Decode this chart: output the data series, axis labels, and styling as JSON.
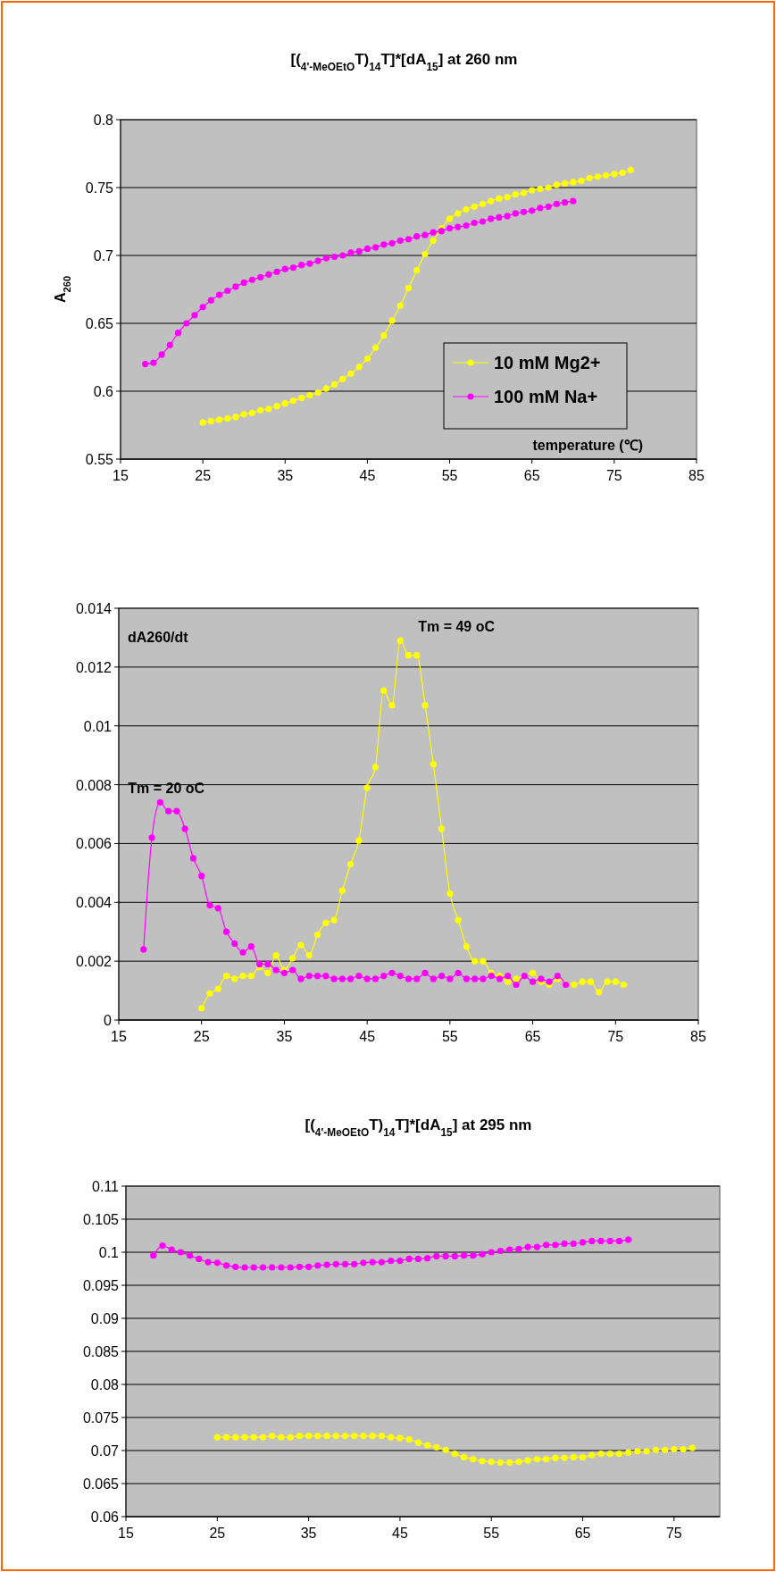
{
  "chart_data": [
    {
      "type": "line",
      "title": "[($_{4'-MeOEtO}$T)$_{14}$T]*[dA$_{15}$] at 260 nm",
      "xlabel": "temperature (℃)",
      "ylabel": "A$_{260}$",
      "xlim": [
        15,
        85
      ],
      "xticks": [
        15,
        25,
        35,
        45,
        55,
        65,
        75,
        85
      ],
      "ylim": [
        0.55,
        0.8
      ],
      "yticks": [
        0.55,
        0.6,
        0.65,
        0.7,
        0.75,
        0.8
      ],
      "grid": "y",
      "legend": "bottom right",
      "marker": "circle",
      "series": [
        {
          "name": "10 mM Mg2+",
          "color": "#ffff00",
          "x": [
            25,
            26,
            27,
            28,
            29,
            30,
            31,
            32,
            33,
            34,
            35,
            36,
            37,
            38,
            39,
            40,
            41,
            42,
            43,
            44,
            45,
            46,
            47,
            48,
            49,
            50,
            51,
            52,
            53,
            54,
            55,
            56,
            57,
            58,
            59,
            60,
            61,
            62,
            63,
            64,
            65,
            66,
            67,
            68,
            69,
            70,
            71,
            72,
            73,
            74,
            75,
            76,
            77
          ],
          "values": [
            0.577,
            0.578,
            0.579,
            0.58,
            0.581,
            0.583,
            0.584,
            0.586,
            0.587,
            0.589,
            0.591,
            0.593,
            0.595,
            0.597,
            0.599,
            0.602,
            0.605,
            0.609,
            0.613,
            0.618,
            0.624,
            0.632,
            0.641,
            0.652,
            0.663,
            0.676,
            0.689,
            0.701,
            0.711,
            0.72,
            0.727,
            0.731,
            0.734,
            0.736,
            0.738,
            0.74,
            0.742,
            0.743,
            0.745,
            0.746,
            0.748,
            0.749,
            0.75,
            0.752,
            0.753,
            0.754,
            0.755,
            0.757,
            0.758,
            0.759,
            0.76,
            0.761,
            0.763
          ]
        },
        {
          "name": "100 mM Na+",
          "color": "#ff00ff",
          "x": [
            18,
            19,
            20,
            21,
            22,
            23,
            24,
            25,
            26,
            27,
            28,
            29,
            30,
            31,
            32,
            33,
            34,
            35,
            36,
            37,
            38,
            39,
            40,
            41,
            42,
            43,
            44,
            45,
            46,
            47,
            48,
            49,
            50,
            51,
            52,
            53,
            54,
            55,
            56,
            57,
            58,
            59,
            60,
            61,
            62,
            63,
            64,
            65,
            66,
            67,
            68,
            69,
            70
          ],
          "values": [
            0.62,
            0.621,
            0.627,
            0.634,
            0.643,
            0.65,
            0.656,
            0.662,
            0.667,
            0.671,
            0.674,
            0.677,
            0.68,
            0.682,
            0.684,
            0.686,
            0.688,
            0.69,
            0.691,
            0.693,
            0.694,
            0.696,
            0.698,
            0.699,
            0.7,
            0.702,
            0.703,
            0.705,
            0.706,
            0.708,
            0.709,
            0.711,
            0.712,
            0.714,
            0.715,
            0.717,
            0.718,
            0.72,
            0.721,
            0.722,
            0.724,
            0.725,
            0.727,
            0.728,
            0.729,
            0.731,
            0.732,
            0.733,
            0.735,
            0.736,
            0.738,
            0.739,
            0.74
          ]
        }
      ]
    },
    {
      "type": "line",
      "xlim": [
        15,
        85
      ],
      "xticks": [
        15,
        25,
        35,
        45,
        55,
        65,
        75,
        85
      ],
      "ylim": [
        0,
        0.014
      ],
      "yticks": [
        0,
        0.002,
        0.004,
        0.006,
        0.008,
        0.01,
        0.012,
        0.014
      ],
      "grid": "y",
      "marker": "circle",
      "annotations": [
        "dA260/dt",
        {
          "text": "Tm = 20 oC",
          "x": 20,
          "y": 0.0074
        },
        {
          "text": "Tm = 49 oC",
          "x": 49,
          "y": 0.0129
        }
      ],
      "series": [
        {
          "color": "#ffff00",
          "x": [
            25,
            26,
            27,
            28,
            29,
            30,
            31,
            32,
            33,
            34,
            35,
            36,
            37,
            38,
            39,
            40,
            41,
            42,
            43,
            44,
            45,
            46,
            47,
            48,
            49,
            50,
            51,
            52,
            53,
            54,
            55,
            56,
            57,
            58,
            59,
            60,
            61,
            62,
            63,
            64,
            65,
            66,
            67,
            68,
            69,
            70,
            71,
            72,
            73,
            74,
            75,
            76
          ],
          "values": [
            0.0004,
            0.0009,
            0.00106,
            0.0015,
            0.0014,
            0.0015,
            0.0015,
            0.0018,
            0.0016,
            0.0022,
            0.0017,
            0.0021,
            0.00255,
            0.0022,
            0.0029,
            0.0033,
            0.0034,
            0.0044,
            0.0053,
            0.0061,
            0.0079,
            0.0086,
            0.0112,
            0.0107,
            0.0129,
            0.0124,
            0.0124,
            0.0107,
            0.0087,
            0.0065,
            0.0043,
            0.0034,
            0.0025,
            0.002,
            0.002,
            0.0016,
            0.0015,
            0.0013,
            0.0014,
            null,
            0.0016,
            0.0013,
            0.0012,
            0.0014,
            null,
            0.0012,
            0.0013,
            0.0013,
            0.00095,
            0.0013,
            0.0013,
            0.0012
          ]
        },
        {
          "color": "#ff00ff",
          "x": [
            18,
            19,
            20,
            21,
            22,
            23,
            24,
            25,
            26,
            27,
            28,
            29,
            30,
            31,
            32,
            33,
            34,
            35,
            36,
            37,
            38,
            39,
            40,
            41,
            42,
            43,
            44,
            45,
            46,
            47,
            48,
            49,
            50,
            51,
            52,
            53,
            54,
            55,
            56,
            57,
            58,
            59,
            60,
            61,
            62,
            63,
            64,
            65,
            66,
            67,
            68,
            69
          ],
          "values": [
            0.0024,
            0.0062,
            0.0074,
            0.0071,
            0.0071,
            0.0065,
            0.0055,
            0.0049,
            0.0039,
            0.0038,
            0.003,
            0.0026,
            0.0023,
            0.0025,
            0.0019,
            0.0019,
            0.0017,
            0.0016,
            0.0017,
            0.0014,
            0.0015,
            0.0015,
            0.0015,
            0.0014,
            0.0014,
            0.0014,
            0.0015,
            0.0014,
            0.0014,
            0.0015,
            0.0016,
            0.0015,
            0.0014,
            0.0014,
            0.0016,
            0.0014,
            0.0015,
            0.0014,
            0.0016,
            0.0014,
            0.0014,
            0.0014,
            0.0015,
            0.0014,
            0.0015,
            0.0012,
            0.0015,
            0.0013,
            0.0014,
            0.0013,
            0.0015,
            0.0012
          ]
        }
      ]
    },
    {
      "type": "line",
      "title": "[($_{4'-MeOEtO}$T)$_{14}$T]*[dA$_{15}$] at 295 nm",
      "xlim": [
        15,
        80
      ],
      "xticks": [
        15,
        25,
        35,
        45,
        55,
        65,
        75
      ],
      "ylim": [
        0.06,
        0.11
      ],
      "yticks": [
        0.06,
        0.065,
        0.07,
        0.075,
        0.08,
        0.085,
        0.09,
        0.095,
        0.1,
        0.105,
        0.11
      ],
      "grid": "y",
      "marker": "circle",
      "series": [
        {
          "color": "#ff00ff",
          "x": [
            18,
            19,
            20,
            21,
            22,
            23,
            24,
            25,
            26,
            27,
            28,
            29,
            30,
            31,
            32,
            33,
            34,
            35,
            36,
            37,
            38,
            39,
            40,
            41,
            42,
            43,
            44,
            45,
            46,
            47,
            48,
            49,
            50,
            51,
            52,
            53,
            54,
            55,
            56,
            57,
            58,
            59,
            60,
            61,
            62,
            63,
            64,
            65,
            66,
            67,
            68,
            69,
            70
          ],
          "values": [
            0.0995,
            0.101,
            0.1004,
            0.1,
            0.0995,
            0.099,
            0.0985,
            0.0984,
            0.098,
            0.0978,
            0.0977,
            0.0977,
            0.0977,
            0.0977,
            0.0977,
            0.0977,
            0.0978,
            0.0978,
            0.098,
            0.0981,
            0.0982,
            0.0982,
            0.0982,
            0.0984,
            0.0985,
            0.0985,
            0.0987,
            0.0987,
            0.099,
            0.099,
            0.0991,
            0.0994,
            0.0994,
            0.0994,
            0.0995,
            0.0995,
            0.0997,
            0.1,
            0.1002,
            0.1004,
            0.1005,
            0.1008,
            0.1008,
            0.1011,
            0.1011,
            0.1013,
            0.1013,
            0.1015,
            0.1017,
            0.1017,
            0.1017,
            0.1017,
            0.1019
          ]
        },
        {
          "color": "#ffff00",
          "x": [
            25,
            26,
            27,
            28,
            29,
            30,
            31,
            32,
            33,
            34,
            35,
            36,
            37,
            38,
            39,
            40,
            41,
            42,
            43,
            44,
            45,
            46,
            47,
            48,
            49,
            50,
            51,
            52,
            53,
            54,
            55,
            56,
            57,
            58,
            59,
            60,
            61,
            62,
            63,
            64,
            65,
            66,
            67,
            68,
            69,
            70,
            71,
            72,
            73,
            74,
            75,
            76,
            77
          ],
          "values": [
            0.072,
            0.072,
            0.072,
            0.072,
            0.072,
            0.072,
            0.0722,
            0.072,
            0.072,
            0.0722,
            0.0722,
            0.0722,
            0.0722,
            0.0722,
            0.0722,
            0.0722,
            0.0722,
            0.0722,
            0.0722,
            0.072,
            0.0719,
            0.0717,
            0.0712,
            0.0708,
            0.0705,
            0.0701,
            0.0695,
            0.069,
            0.0687,
            0.0684,
            0.0683,
            0.0682,
            0.0682,
            0.0683,
            0.0685,
            0.0687,
            0.0687,
            0.0689,
            0.0689,
            0.069,
            0.069,
            0.0693,
            0.0695,
            0.0695,
            0.0695,
            0.0697,
            0.0699,
            0.0699,
            0.0701,
            0.0701,
            0.0702,
            0.0702,
            0.0704
          ]
        }
      ]
    }
  ]
}
